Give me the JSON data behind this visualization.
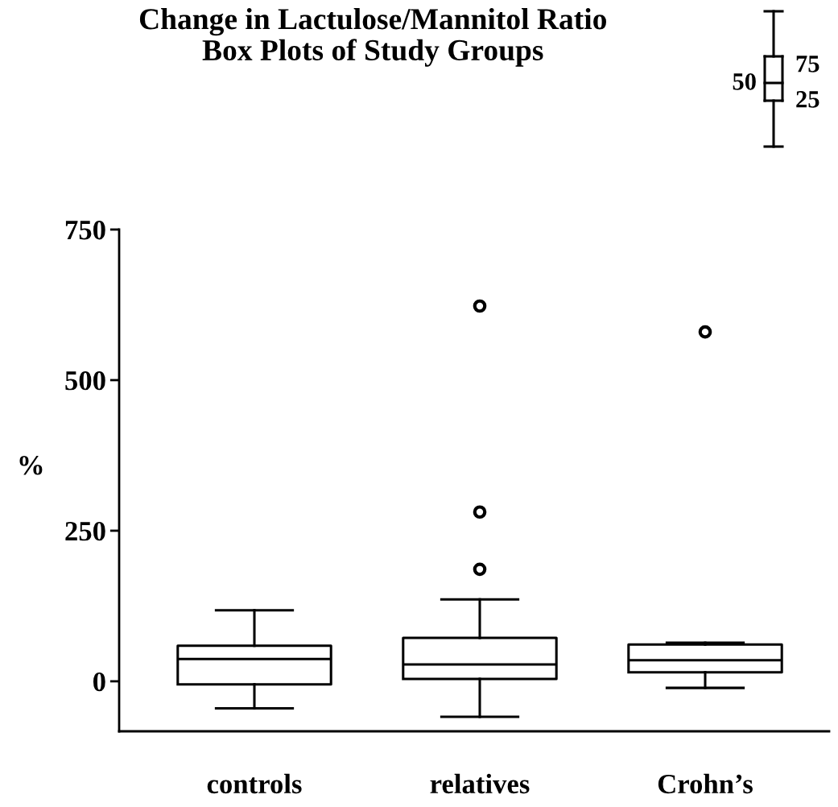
{
  "chart_data": {
    "type": "box",
    "title": "Change in Lactulose/Mannitol Ratio\nBox Plots of Study Groups",
    "ylabel": "%",
    "categories": [
      "controls",
      "relatives",
      "Crohn’s"
    ],
    "boxes": [
      {
        "low": -45,
        "q1": -5,
        "median": 37,
        "q3": 59,
        "high": 118
      },
      {
        "low": -59,
        "q1": 4,
        "median": 28,
        "q3": 72,
        "high": 136,
        "outliers": [
          186,
          281,
          623
        ]
      },
      {
        "low": -11,
        "q1": 15,
        "median": 35,
        "q3": 61,
        "high": 64,
        "outliers": [
          580
        ]
      }
    ],
    "ylim": [
      -83,
      750
    ],
    "yticks": [
      0,
      250,
      500,
      750
    ],
    "grid": false,
    "annotations": [
      "75",
      "50",
      "25"
    ]
  }
}
